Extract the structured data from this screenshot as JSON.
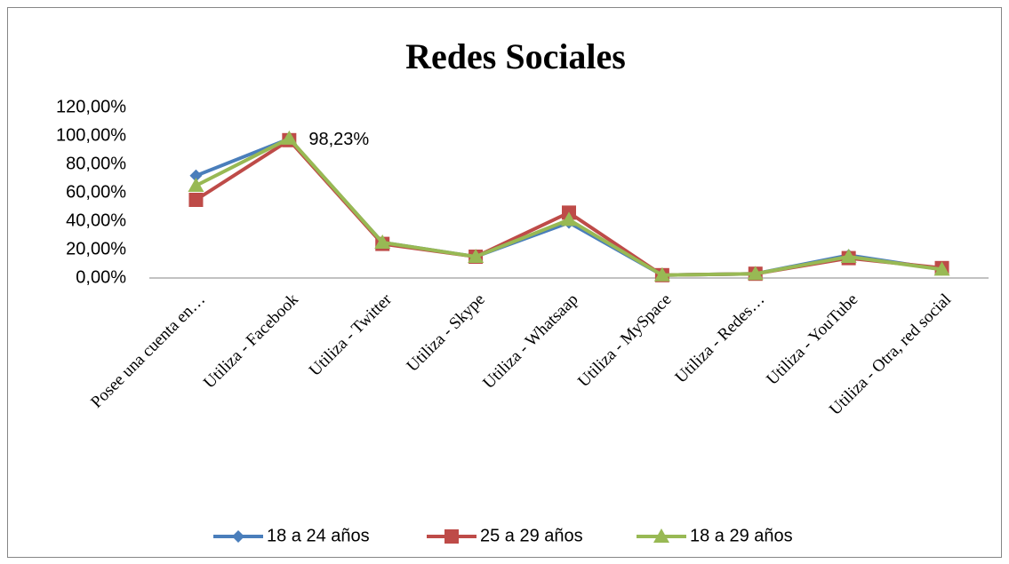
{
  "chart_data": {
    "type": "line",
    "title": "Redes Sociales",
    "categories": [
      "Posee una cuenta en…",
      "Utiliza - Facebook",
      "Utiliza - Twitter",
      "Utiliza - Skype",
      "Utiliza - Whatsaap",
      "Utiliza - MySpace",
      "Utiliza - Redes…",
      "Utiliza - YouTube",
      "Utiliza - Otra, red social"
    ],
    "series": [
      {
        "name": "18 a 24 años",
        "color": "#4a7ebb",
        "marker": "diamond",
        "values": [
          72,
          98,
          25,
          15,
          39,
          2,
          3,
          16,
          6
        ]
      },
      {
        "name": "25 a 29 años",
        "color": "#be4b48",
        "marker": "square",
        "values": [
          55,
          97,
          24,
          15,
          46,
          2,
          3,
          14,
          7
        ]
      },
      {
        "name": "18 a 29 años",
        "color": "#98b954",
        "marker": "triangle",
        "values": [
          65,
          98.23,
          25,
          15,
          41,
          2,
          3,
          15,
          6
        ],
        "value_labels": [
          null,
          "98,23%",
          null,
          null,
          null,
          null,
          null,
          null,
          null
        ]
      }
    ],
    "ylim": [
      0,
      120
    ],
    "yticks": [
      {
        "value": 0,
        "label": "0,00%"
      },
      {
        "value": 20,
        "label": "20,00%"
      },
      {
        "value": 40,
        "label": "40,00%"
      },
      {
        "value": 60,
        "label": "60,00%"
      },
      {
        "value": 80,
        "label": "80,00%"
      },
      {
        "value": 100,
        "label": "100,00%"
      },
      {
        "value": 120,
        "label": "120,00%"
      }
    ],
    "grid": false,
    "legend": "bottom"
  }
}
